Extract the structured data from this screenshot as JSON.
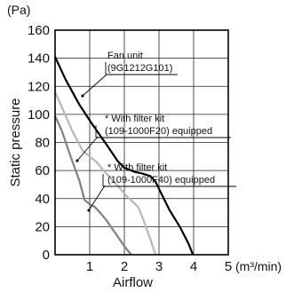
{
  "chart_data": {
    "type": "line",
    "title": "",
    "xlabel": "Airflow",
    "ylabel": "Static pressure",
    "x_unit": "(m³/min)",
    "y_unit": "(Pa)",
    "xlim": [
      0,
      5
    ],
    "ylim": [
      0,
      160
    ],
    "x_ticks": [
      "0",
      "1",
      "2",
      "3",
      "4",
      "5"
    ],
    "y_ticks": [
      "0",
      "20",
      "40",
      "60",
      "80",
      "100",
      "120",
      "140",
      "160"
    ],
    "grid": true,
    "legend": "none",
    "series": [
      {
        "name": "Fan unit (9G1212G101)",
        "color": "#000000",
        "points": [
          [
            0,
            141
          ],
          [
            0.3,
            125
          ],
          [
            0.7,
            107
          ],
          [
            1.1,
            92
          ],
          [
            1.5,
            78
          ],
          [
            1.8,
            67
          ],
          [
            2.0,
            62
          ],
          [
            2.3,
            59
          ],
          [
            2.5,
            58
          ],
          [
            2.75,
            56
          ],
          [
            2.9,
            52
          ],
          [
            3.1,
            42
          ],
          [
            3.3,
            32
          ],
          [
            3.6,
            20
          ],
          [
            3.85,
            8
          ],
          [
            3.98,
            0
          ]
        ]
      },
      {
        "name": "* With filter kit (109-1000F20) equipped",
        "color": "#b8b8b8",
        "points": [
          [
            0,
            116
          ],
          [
            0.2,
            105
          ],
          [
            0.5,
            88
          ],
          [
            0.8,
            74
          ],
          [
            1.0,
            70
          ],
          [
            1.2,
            66
          ],
          [
            1.4,
            60
          ],
          [
            1.7,
            52
          ],
          [
            2.1,
            41
          ],
          [
            2.4,
            34
          ],
          [
            2.55,
            25
          ],
          [
            2.75,
            11
          ],
          [
            2.9,
            0
          ]
        ]
      },
      {
        "name": "* With filter kit (109-1000F40) equipped",
        "color": "#808080",
        "points": [
          [
            0,
            99
          ],
          [
            0.2,
            88
          ],
          [
            0.45,
            70
          ],
          [
            0.7,
            53
          ],
          [
            0.85,
            39
          ],
          [
            1.0,
            36
          ],
          [
            1.15,
            34
          ],
          [
            1.3,
            30
          ],
          [
            1.5,
            24
          ],
          [
            1.75,
            15
          ],
          [
            2.0,
            6
          ],
          [
            2.2,
            0
          ]
        ]
      }
    ],
    "annotations": [
      {
        "lines": [
          "Fan unit",
          "(9G1212G101)"
        ],
        "series": 0
      },
      {
        "lines": [
          "* With filter kit",
          "(109-1000F20) equipped"
        ],
        "series": 1
      },
      {
        "lines": [
          "* With filter kit",
          "(109-1000F40) equipped"
        ],
        "series": 2
      }
    ]
  }
}
